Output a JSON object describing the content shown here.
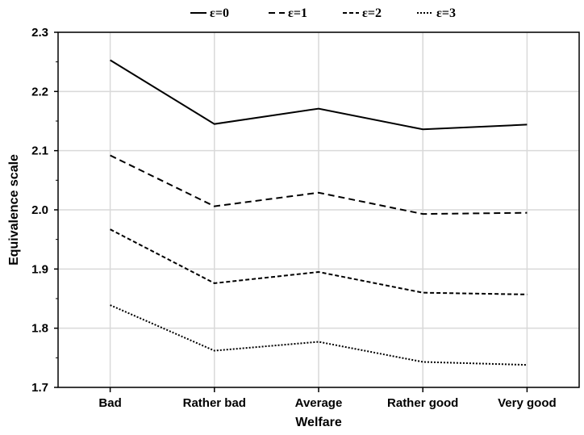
{
  "chart_data": {
    "type": "line",
    "xlabel": "Welfare",
    "ylabel": "Equivalence scale",
    "categories": [
      "Bad",
      "Rather bad",
      "Average",
      "Rather good",
      "Very good"
    ],
    "ylim": [
      1.7,
      2.3
    ],
    "yticks": [
      "1.7",
      "1.8",
      "1.9",
      "2.0",
      "2.1",
      "2.2",
      "2.3"
    ],
    "grid": true,
    "legend_position": "top-center",
    "series": [
      {
        "name": "ε=0",
        "style": "solid",
        "values": [
          2.253,
          2.145,
          2.171,
          2.136,
          2.144
        ]
      },
      {
        "name": "ε=1",
        "style": "dashed",
        "values": [
          2.092,
          2.006,
          2.029,
          1.993,
          1.995
        ]
      },
      {
        "name": "ε=2",
        "style": "dashed-short",
        "values": [
          1.967,
          1.876,
          1.895,
          1.86,
          1.857
        ]
      },
      {
        "name": "ε=3",
        "style": "dotted",
        "values": [
          1.839,
          1.762,
          1.777,
          1.743,
          1.738
        ]
      }
    ]
  }
}
